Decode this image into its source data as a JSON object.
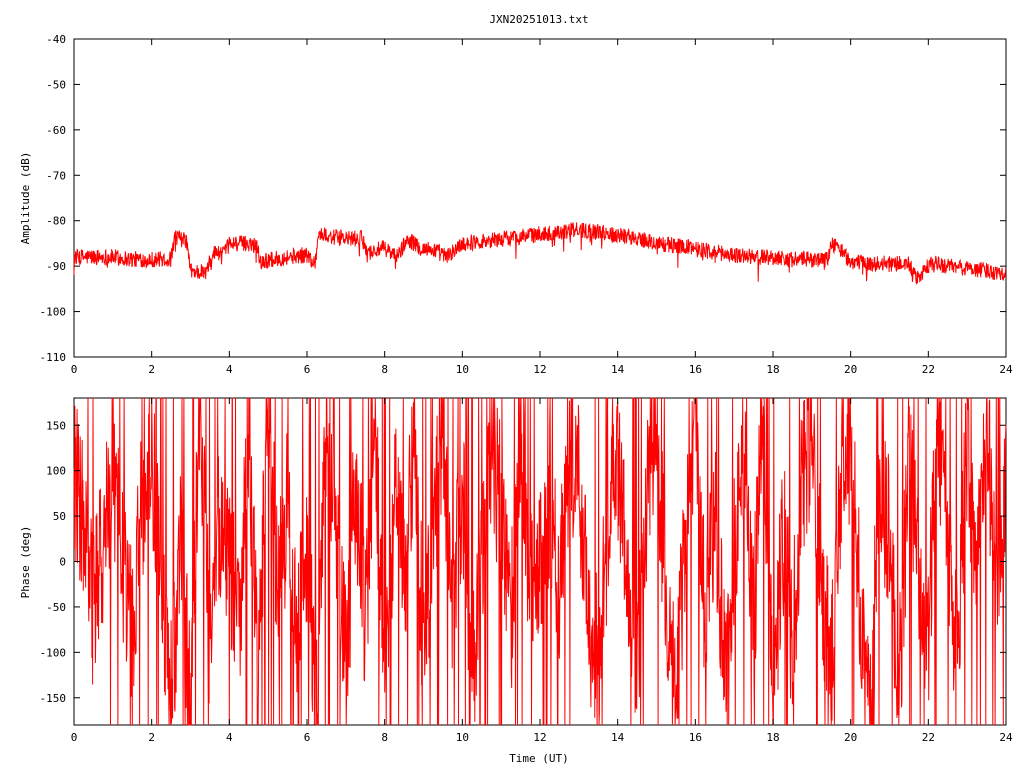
{
  "chart_data": [
    {
      "type": "line",
      "title": "JXN20251013.txt",
      "xlabel": "",
      "ylabel": "Amplitude (dB)",
      "xlim": [
        0,
        24
      ],
      "ylim": [
        -110,
        -40
      ],
      "x_ticks": [
        "0",
        "2",
        "4",
        "6",
        "8",
        "10",
        "12",
        "14",
        "16",
        "18",
        "20",
        "22",
        "24"
      ],
      "y_ticks": [
        "-40",
        "-50",
        "-60",
        "-70",
        "-80",
        "-90",
        "-100",
        "-110"
      ],
      "grid": false,
      "legend": "none",
      "series_color": "#ff0000",
      "series": [
        {
          "x": [
            0,
            0.5,
            1,
            1.5,
            2,
            2.5,
            2.6,
            2.9,
            3.0,
            3.4,
            3.6,
            3.9,
            4.0,
            4.5,
            4.7,
            4.8,
            5.5,
            6.0,
            6.2,
            6.3,
            7.0,
            7.4,
            7.6,
            8.0,
            8.3,
            8.6,
            8.9,
            9.3,
            9.6,
            10.0,
            10.5,
            11.0,
            11.5,
            12.0,
            12.5,
            13.0,
            13.5,
            14.0,
            14.5,
            15.0,
            15.5,
            16.0,
            16.5,
            17.0,
            17.5,
            18.0,
            18.5,
            19.0,
            19.4,
            19.5,
            19.7,
            20.0,
            20.5,
            21.0,
            21.5,
            21.7,
            22.0,
            22.2,
            22.5,
            23.0,
            23.5,
            24.0
          ],
          "y": [
            -88,
            -88,
            -88,
            -88.5,
            -88.5,
            -88.5,
            -83.5,
            -84.5,
            -91,
            -91.5,
            -87,
            -87,
            -85,
            -85,
            -85,
            -89,
            -88,
            -87.5,
            -89.5,
            -83,
            -84,
            -84,
            -87,
            -86,
            -88,
            -84,
            -86,
            -86.5,
            -88,
            -85,
            -84.5,
            -84,
            -83.5,
            -83,
            -82.5,
            -82,
            -82.5,
            -83,
            -84,
            -85,
            -85.5,
            -86,
            -87,
            -87.5,
            -88,
            -88,
            -88.5,
            -88.5,
            -88.5,
            -85,
            -86,
            -89,
            -89.5,
            -89.5,
            -89.5,
            -93,
            -90,
            -89.5,
            -90,
            -90.5,
            -91,
            -91.5
          ],
          "noise_db": 1.8
        }
      ]
    },
    {
      "type": "line",
      "title": "",
      "xlabel": "Time (UT)",
      "ylabel": "Phase (deg)",
      "xlim": [
        0,
        24
      ],
      "ylim": [
        -180,
        180
      ],
      "x_ticks": [
        "0",
        "2",
        "4",
        "6",
        "8",
        "10",
        "12",
        "14",
        "16",
        "18",
        "20",
        "22",
        "24"
      ],
      "y_ticks": [
        "150",
        "100",
        "50",
        "0",
        "-50",
        "-100",
        "-150"
      ],
      "grid": false,
      "legend": "none",
      "series_color": "#ff0000",
      "series": [
        {
          "x": [
            0,
            0.25,
            0.5,
            0.75,
            1,
            1.25,
            1.5,
            1.75,
            2,
            2.25,
            2.5,
            2.75,
            3,
            3.25,
            3.5,
            3.75,
            4,
            4.25,
            4.5,
            4.75,
            5,
            5.25,
            5.5,
            5.75,
            6,
            6.25,
            6.5,
            6.75,
            7,
            7.25,
            7.5,
            7.75,
            8,
            8.25,
            8.5,
            8.75,
            9,
            9.25,
            9.5,
            9.75,
            10,
            10.25,
            10.5,
            10.75,
            11,
            11.25,
            11.5,
            11.75,
            12,
            12.25,
            12.5,
            12.75,
            13,
            13.25,
            13.5,
            13.75,
            14,
            14.25,
            14.5,
            14.75,
            15,
            15.25,
            15.5,
            15.75,
            16,
            16.25,
            16.5,
            16.75,
            17,
            17.25,
            17.5,
            17.75,
            18,
            18.25,
            18.5,
            18.75,
            19,
            19.25,
            19.5,
            19.75,
            20,
            20.25,
            20.5,
            20.75,
            21,
            21.25,
            21.5,
            21.75,
            22,
            22.25,
            22.5,
            22.75,
            23,
            23.25,
            23.5,
            23.75,
            24
          ],
          "y": [
            100,
            40,
            -60,
            20,
            110,
            0,
            -80,
            60,
            120,
            -40,
            -150,
            30,
            -170,
            170,
            -90,
            50,
            0,
            -60,
            140,
            -120,
            170,
            -30,
            60,
            -90,
            20,
            -170,
            160,
            40,
            -120,
            90,
            -60,
            150,
            -160,
            80,
            -20,
            130,
            -100,
            40,
            150,
            -50,
            90,
            -140,
            20,
            120,
            60,
            -80,
            160,
            -30,
            -10,
            70,
            -40,
            120,
            90,
            -60,
            -110,
            40,
            100,
            -20,
            -130,
            60,
            150,
            -40,
            -160,
            30,
            140,
            -50,
            60,
            -120,
            20,
            110,
            -70,
            170,
            -150,
            40,
            -90,
            80,
            150,
            -30,
            -100,
            60,
            130,
            -60,
            -170,
            90,
            30,
            -140,
            120,
            -20,
            -80,
            160,
            20,
            -110,
            140,
            -40,
            170,
            -60,
            100
          ],
          "swing_deg": 90
        }
      ]
    }
  ]
}
